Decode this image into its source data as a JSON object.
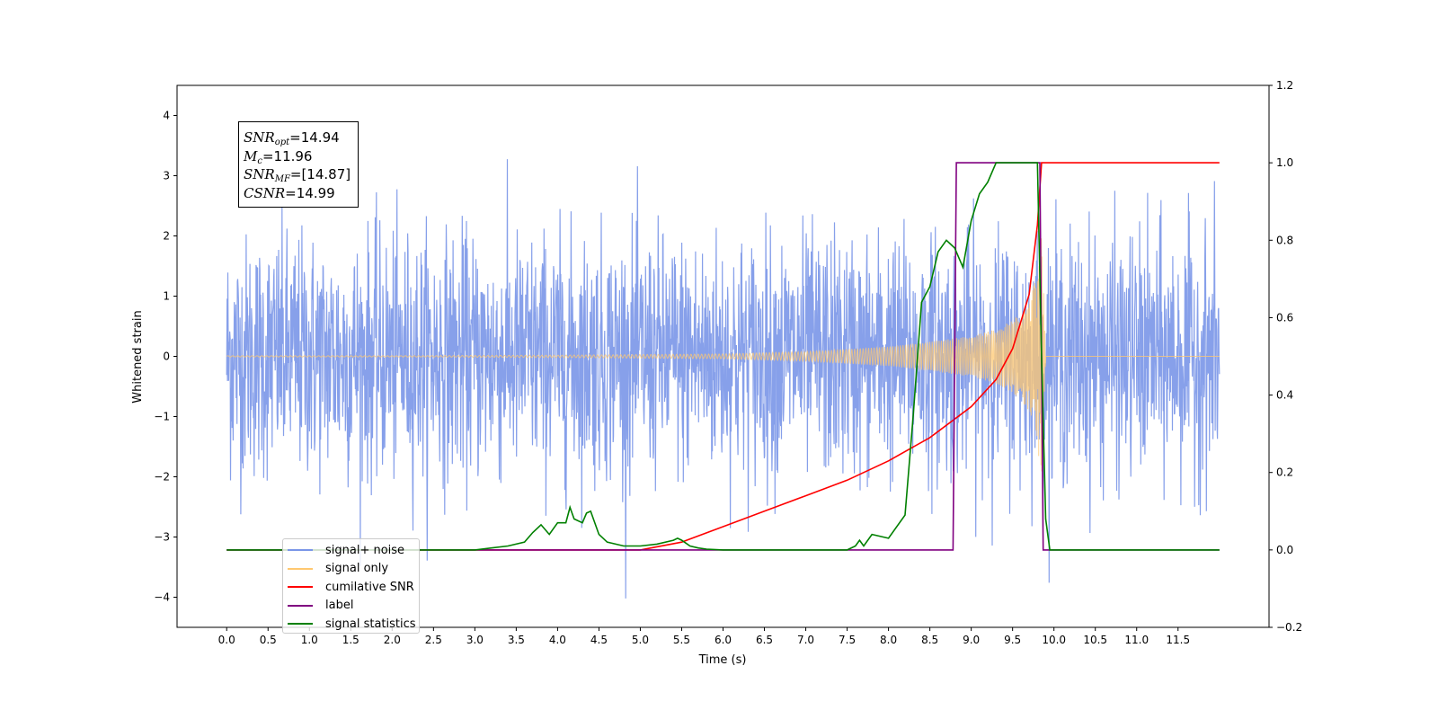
{
  "chart_data": {
    "type": "line",
    "xlabel": "Time (s)",
    "ylabel": "Whitened strain",
    "xlim": [
      -0.6,
      12.6
    ],
    "ylim": [
      -4.5,
      4.5
    ],
    "y2lim": [
      -0.2,
      1.2
    ],
    "xticks": [
      "0.0",
      "0.5",
      "1.0",
      "1.5",
      "2.0",
      "2.5",
      "3.0",
      "3.5",
      "4.0",
      "4.5",
      "5.0",
      "5.5",
      "6.0",
      "6.5",
      "7.0",
      "7.5",
      "8.0",
      "8.5",
      "9.0",
      "9.5",
      "10.0",
      "10.5",
      "11.0",
      "11.5"
    ],
    "yticks": [
      "−4",
      "−3",
      "−2",
      "−1",
      "0",
      "1",
      "2",
      "3",
      "4"
    ],
    "y2ticks": [
      "−0.2",
      "0.0",
      "0.2",
      "0.4",
      "0.6",
      "0.8",
      "1.0",
      "1.2"
    ],
    "grid": false,
    "legend_position": "lower-left",
    "annotation": {
      "snr_opt": "=14.94",
      "mc": "=11.96",
      "snr_mf": "=[14.87]",
      "csnr": "=14.99"
    },
    "series": [
      {
        "name": "signal+ noise",
        "axis": "left",
        "color": "#7a96e8",
        "description_values": {
          "t_start": 0.0,
          "t_end": 12.0,
          "sigma": 1.0,
          "min": -4.05,
          "max": 4.12
        }
      },
      {
        "name": "signal only",
        "axis": "left",
        "color": "#ffc870",
        "envelope": {
          "t": [
            0.0,
            2.0,
            4.0,
            6.0,
            7.0,
            8.0,
            8.5,
            9.0,
            9.3,
            9.5,
            9.7,
            9.8,
            9.85,
            9.9,
            10.0
          ],
          "amp": [
            0.01,
            0.01,
            0.02,
            0.04,
            0.08,
            0.16,
            0.24,
            0.34,
            0.45,
            0.6,
            0.9,
            1.4,
            2.2,
            0.0,
            0.0
          ]
        }
      },
      {
        "name": "cumilative SNR",
        "axis": "right",
        "color": "#ff0000",
        "x": [
          0.0,
          5.0,
          5.5,
          6.0,
          6.5,
          7.0,
          7.5,
          8.0,
          8.5,
          9.0,
          9.3,
          9.5,
          9.7,
          9.8,
          9.85,
          12.0
        ],
        "y": [
          0.0,
          0.0,
          0.02,
          0.06,
          0.1,
          0.14,
          0.18,
          0.23,
          0.29,
          0.37,
          0.44,
          0.52,
          0.66,
          0.84,
          1.0,
          1.0
        ]
      },
      {
        "name": "label",
        "axis": "right",
        "color": "#800080",
        "x": [
          0.0,
          8.78,
          8.82,
          9.83,
          9.87,
          12.0
        ],
        "y": [
          0.0,
          0.0,
          1.0,
          1.0,
          0.0,
          0.0
        ]
      },
      {
        "name": "signal statistics",
        "axis": "right",
        "color": "#008000",
        "x": [
          0.0,
          3.0,
          3.2,
          3.4,
          3.6,
          3.7,
          3.8,
          3.9,
          4.0,
          4.1,
          4.15,
          4.2,
          4.3,
          4.35,
          4.4,
          4.5,
          4.6,
          4.8,
          5.0,
          5.2,
          5.4,
          5.45,
          5.5,
          5.6,
          5.7,
          5.8,
          6.0,
          7.5,
          7.6,
          7.65,
          7.7,
          7.8,
          8.0,
          8.2,
          8.3,
          8.4,
          8.5,
          8.6,
          8.7,
          8.8,
          8.9,
          9.0,
          9.1,
          9.2,
          9.3,
          9.4,
          9.5,
          9.6,
          9.7,
          9.8,
          9.85,
          9.9,
          9.95,
          10.0,
          12.0
        ],
        "y": [
          0.0,
          0.0,
          0.005,
          0.01,
          0.02,
          0.045,
          0.065,
          0.04,
          0.07,
          0.07,
          0.11,
          0.08,
          0.07,
          0.095,
          0.1,
          0.04,
          0.02,
          0.01,
          0.01,
          0.015,
          0.025,
          0.03,
          0.025,
          0.01,
          0.005,
          0.002,
          0.0,
          0.0,
          0.01,
          0.025,
          0.01,
          0.04,
          0.03,
          0.09,
          0.35,
          0.64,
          0.68,
          0.77,
          0.8,
          0.78,
          0.73,
          0.85,
          0.92,
          0.95,
          1.0,
          1.0,
          1.0,
          1.0,
          1.0,
          1.0,
          0.5,
          0.08,
          0.0,
          0.0,
          0.0
        ]
      }
    ]
  }
}
